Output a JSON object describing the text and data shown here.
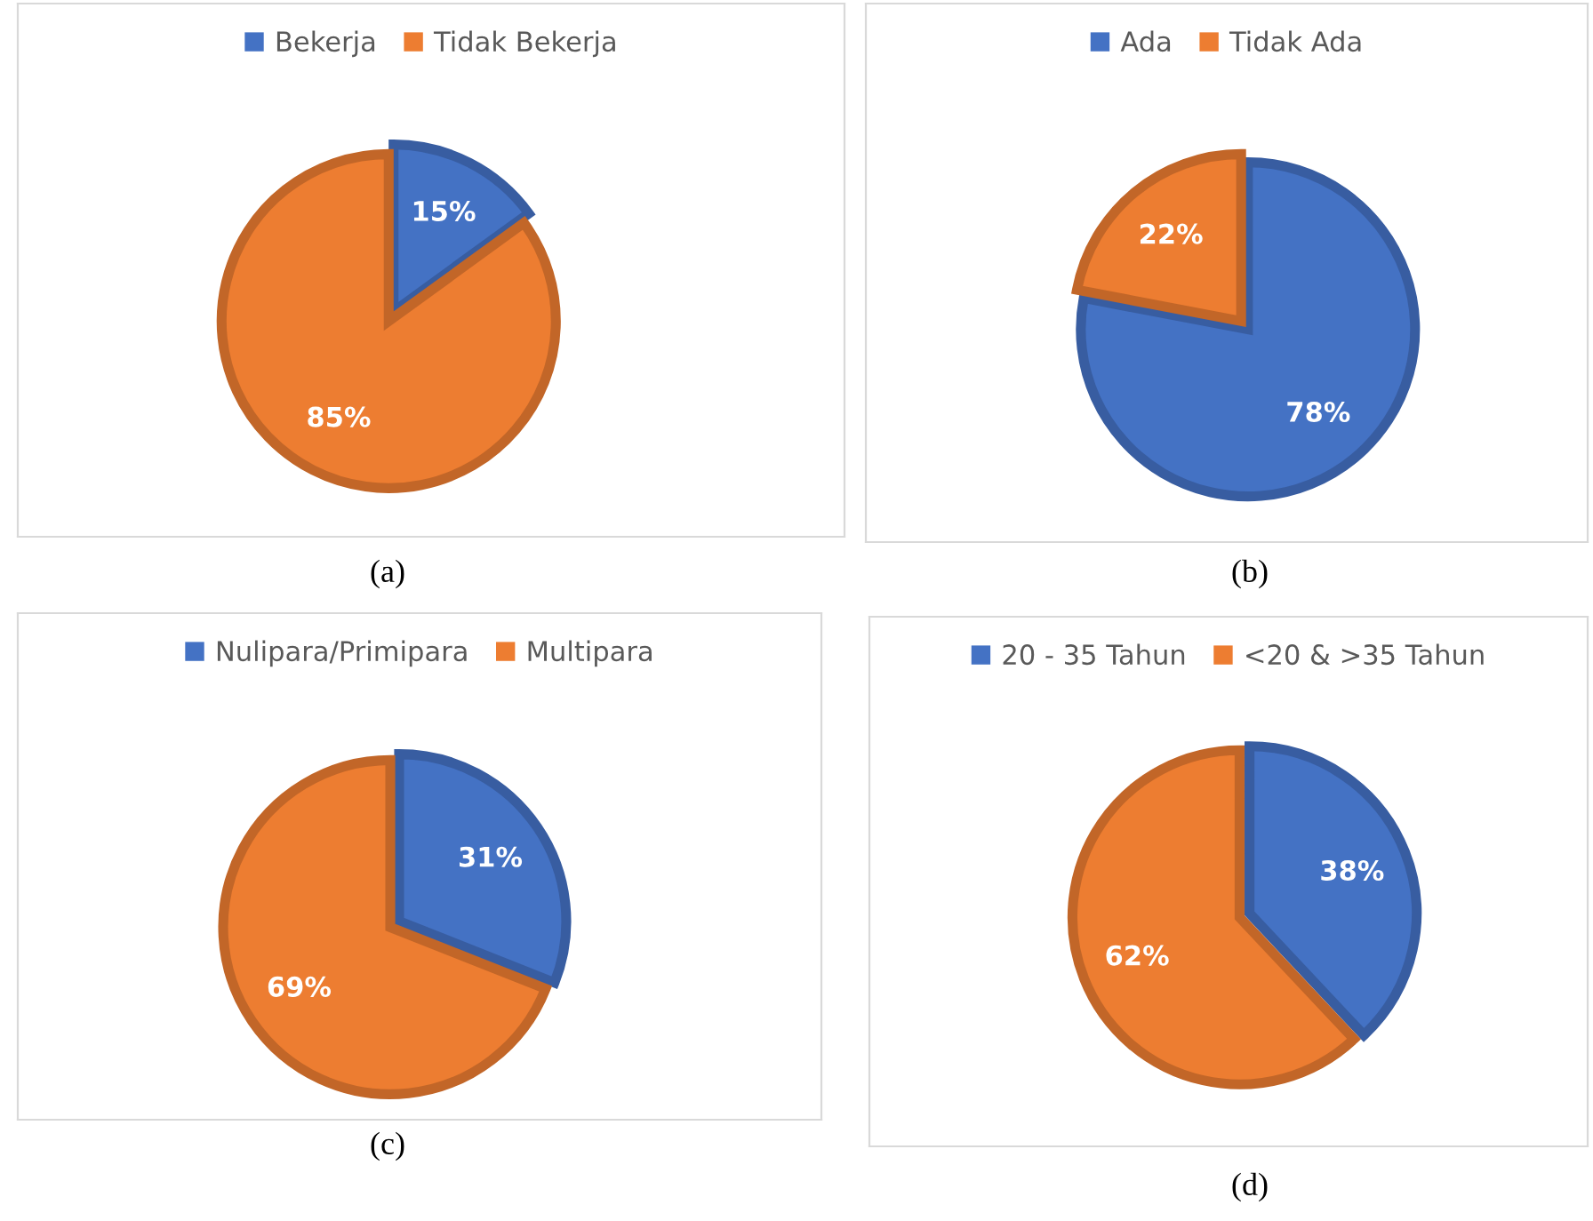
{
  "chart_data": [
    {
      "type": "pie",
      "categories": [
        "Bekerja",
        "Tidak Bekerja"
      ],
      "values": [
        15,
        85
      ],
      "colors": [
        "#4472c4",
        "#ed7d31"
      ],
      "data_labels": true,
      "value_labels": [
        "15%",
        "85%"
      ],
      "legend": "top",
      "annotations": [
        "(a)"
      ]
    },
    {
      "type": "pie",
      "categories": [
        "Ada",
        "Tidak Ada"
      ],
      "values": [
        78,
        22
      ],
      "colors": [
        "#4472c4",
        "#ed7d31"
      ],
      "data_labels": true,
      "value_labels": [
        "78%",
        "22%"
      ],
      "legend": "top",
      "annotations": [
        "(b)"
      ]
    },
    {
      "type": "pie",
      "categories": [
        "Nulipara/Primipara",
        "Multipara"
      ],
      "values": [
        31,
        69
      ],
      "colors": [
        "#4472c4",
        "#ed7d31"
      ],
      "data_labels": true,
      "value_labels": [
        "31%",
        "69%"
      ],
      "legend": "top",
      "annotations": [
        "(c)"
      ]
    },
    {
      "type": "pie",
      "categories": [
        "20 - 35 Tahun",
        "<20 & >35 Tahun"
      ],
      "values": [
        38,
        62
      ],
      "colors": [
        "#4472c4",
        "#ed7d31"
      ],
      "data_labels": true,
      "value_labels": [
        "38%",
        "62%"
      ],
      "legend": "top",
      "annotations": [
        "(d)"
      ]
    }
  ]
}
